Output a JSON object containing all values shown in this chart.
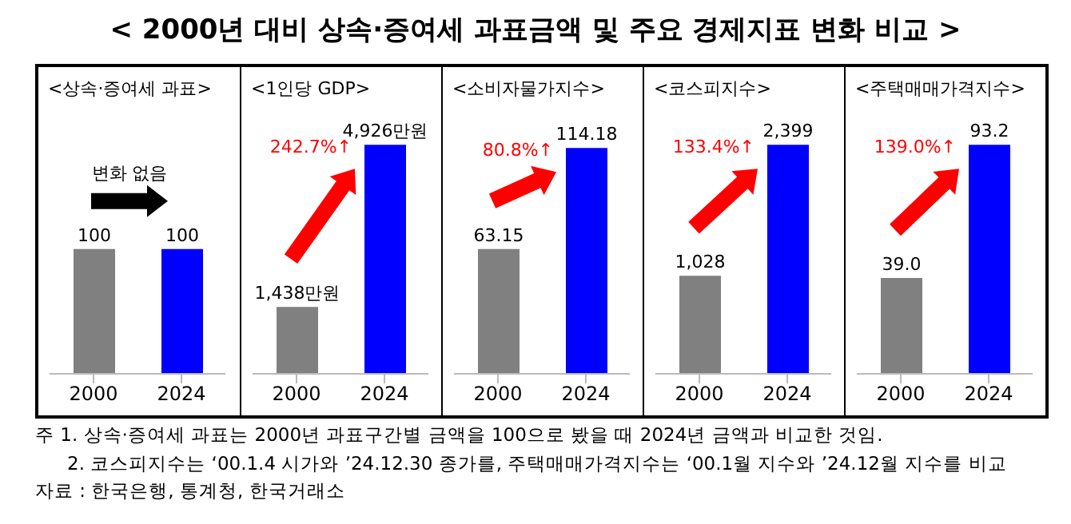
{
  "chart_data": [
    {
      "type": "bar",
      "title": "< 2000년 대비 상속·증여세 과표금액 및 주요 경제지표 변화 비교 >",
      "subtitle": "<상속·증여세 과표>",
      "categories": [
        "2000",
        "2024"
      ],
      "values": [
        100,
        100
      ],
      "colors": [
        "#808080",
        "#0000ff"
      ],
      "data_labels": true,
      "annotations": [
        "변화 없음"
      ]
    },
    {
      "type": "bar",
      "subtitle": "<1인당 GDP>",
      "categories": [
        "2000",
        "2024"
      ],
      "values": [
        1438,
        4926
      ],
      "colors": [
        "#808080",
        "#0000ff"
      ],
      "value_labels": [
        "1,438만원",
        "4,926만원"
      ],
      "annotations": [
        "242.7%↑"
      ]
    },
    {
      "type": "bar",
      "subtitle": "<소비자물가지수>",
      "categories": [
        "2000",
        "2024"
      ],
      "values": [
        63.15,
        114.18
      ],
      "colors": [
        "#808080",
        "#0000ff"
      ],
      "data_labels": true,
      "annotations": [
        "80.8%↑"
      ]
    },
    {
      "type": "bar",
      "subtitle": "<코스피지수>",
      "categories": [
        "2000",
        "2024"
      ],
      "values": [
        1028,
        2399
      ],
      "colors": [
        "#808080",
        "#0000ff"
      ],
      "value_labels": [
        "1,028",
        "2,399"
      ],
      "annotations": [
        "133.4%↑"
      ]
    },
    {
      "type": "bar",
      "subtitle": "<주택매매가격지수>",
      "categories": [
        "2000",
        "2024"
      ],
      "values": [
        39.0,
        93.2
      ],
      "colors": [
        "#808080",
        "#0000ff"
      ],
      "value_labels": [
        "39.0",
        "93.2"
      ],
      "annotations": [
        "139.0%↑",
        "주 1. 상속·증여세 과표는 2000년 과표구간별 금액을 100으로 봤을 때 2024년 금액과 비교한 것임.",
        "2. 코스피지수는 ‘00.1.4 시가와 ’24.12.30 종가를, 주택매매가격지수는 ‘00.1월 지수와 ’24.12월 지수를 비교",
        "자료 : 한국은행, 통계청, 한국거래소"
      ]
    }
  ]
}
